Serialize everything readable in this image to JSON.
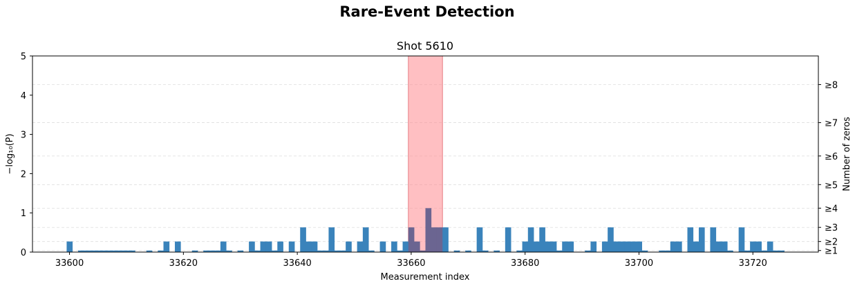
{
  "chart_data": {
    "type": "bar",
    "suptitle": "Rare-Event Detection",
    "title": "Shot 5610",
    "xlabel": "Measurement index",
    "ylabel": "−log₁₀(P)",
    "y2label": "Number of zeros",
    "xlim": [
      33593.5,
      33731.5
    ],
    "ylim": [
      0,
      5
    ],
    "x_ticks": [
      33600,
      33620,
      33640,
      33660,
      33680,
      33700,
      33720
    ],
    "y_ticks": [
      0,
      1,
      2,
      3,
      4,
      5
    ],
    "y2_ticks": [
      {
        "label": "≥1",
        "value": 0.04
      },
      {
        "label": "≥2",
        "value": 0.27
      },
      {
        "label": "≥3",
        "value": 0.63
      },
      {
        "label": "≥4",
        "value": 1.12
      },
      {
        "label": "≥5",
        "value": 1.72
      },
      {
        "label": "≥6",
        "value": 2.45
      },
      {
        "label": "≥7",
        "value": 3.3
      },
      {
        "label": "≥8",
        "value": 4.27
      }
    ],
    "grid": "dashed horizontal at right-axis ticks",
    "highlight": {
      "x_start": 33659.5,
      "x_end": 33665.5,
      "color": "#ff8a8f"
    },
    "bar_color": "#3a83bb",
    "highlight_bar_color": "#6b6591",
    "x_start": 33594,
    "values": [
      0,
      0,
      0,
      0,
      0,
      0,
      0.27,
      0,
      0.04,
      0.04,
      0.04,
      0.04,
      0.04,
      0.04,
      0.04,
      0.04,
      0.04,
      0.04,
      0,
      0,
      0.04,
      0,
      0.04,
      0.27,
      0,
      0.27,
      0,
      0,
      0.04,
      0,
      0.04,
      0.04,
      0.04,
      0.27,
      0.04,
      0,
      0.04,
      0,
      0.27,
      0.04,
      0.27,
      0.27,
      0.04,
      0.27,
      0,
      0.27,
      0,
      0.63,
      0.27,
      0.27,
      0.04,
      0.04,
      0.63,
      0.04,
      0.04,
      0.27,
      0,
      0.27,
      0.63,
      0.04,
      0,
      0.27,
      0,
      0.27,
      0.04,
      0.27,
      0.63,
      0.27,
      0.04,
      1.12,
      0.63,
      0.63,
      0.63,
      0,
      0.04,
      0,
      0.04,
      0,
      0.63,
      0.04,
      0,
      0.04,
      0,
      0.63,
      0,
      0.04,
      0.27,
      0.63,
      0.27,
      0.63,
      0.27,
      0.27,
      0.04,
      0.27,
      0.27,
      0,
      0,
      0.04,
      0.27,
      0,
      0.27,
      0.63,
      0.27,
      0.27,
      0.27,
      0.27,
      0.27,
      0.04,
      0,
      0,
      0.04,
      0.04,
      0.27,
      0.27,
      0,
      0.63,
      0.27,
      0.63,
      0,
      0.63,
      0.27,
      0.27,
      0.04,
      0,
      0.63,
      0.04,
      0.27,
      0.27,
      0.04,
      0.27,
      0.04,
      0.04,
      0,
      0,
      0,
      0,
      0,
      0
    ]
  }
}
